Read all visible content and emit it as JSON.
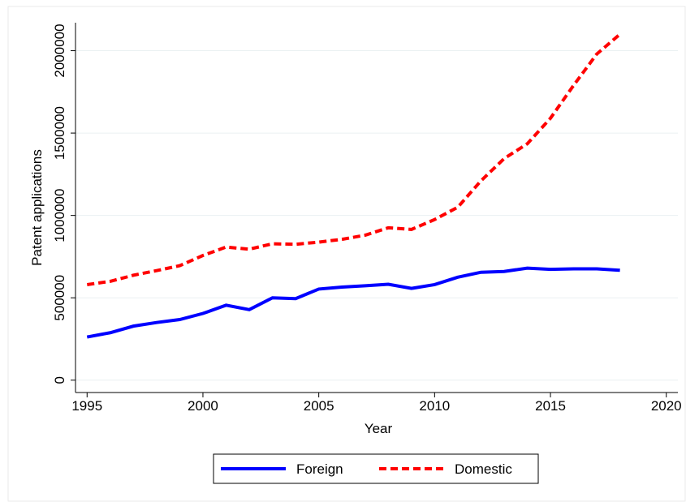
{
  "chart_data": {
    "type": "line",
    "x": [
      1995,
      1996,
      1997,
      1998,
      1999,
      2000,
      2001,
      2002,
      2003,
      2004,
      2005,
      2006,
      2007,
      2008,
      2009,
      2010,
      2011,
      2012,
      2013,
      2014,
      2015,
      2016,
      2017,
      2018
    ],
    "series": [
      {
        "name": "Foreign",
        "color": "#0000ff",
        "dash": "solid",
        "values": [
          262000,
          288000,
          328000,
          350000,
          368000,
          405000,
          455000,
          428000,
          500000,
          495000,
          553000,
          565000,
          573000,
          582000,
          557000,
          580000,
          625000,
          655000,
          660000,
          680000,
          673000,
          676000,
          676000,
          667000
        ]
      },
      {
        "name": "Domestic",
        "color": "#ff0000",
        "dash": "dashed",
        "values": [
          580000,
          600000,
          637000,
          665000,
          695000,
          757000,
          808000,
          795000,
          828000,
          825000,
          838000,
          855000,
          880000,
          925000,
          915000,
          975000,
          1050000,
          1210000,
          1345000,
          1435000,
          1590000,
          1790000,
          1980000,
          2100000
        ]
      }
    ],
    "xlabel": "Year",
    "ylabel": "Patent applications",
    "xlim": [
      1994.5,
      2020.5
    ],
    "xticks": [
      1995,
      2000,
      2005,
      2010,
      2015,
      2020
    ],
    "ylim": [
      -75000,
      2170000
    ],
    "yticks": [
      0,
      500000,
      1000000,
      1500000,
      2000000
    ],
    "grid": true,
    "legend": "bottom"
  }
}
